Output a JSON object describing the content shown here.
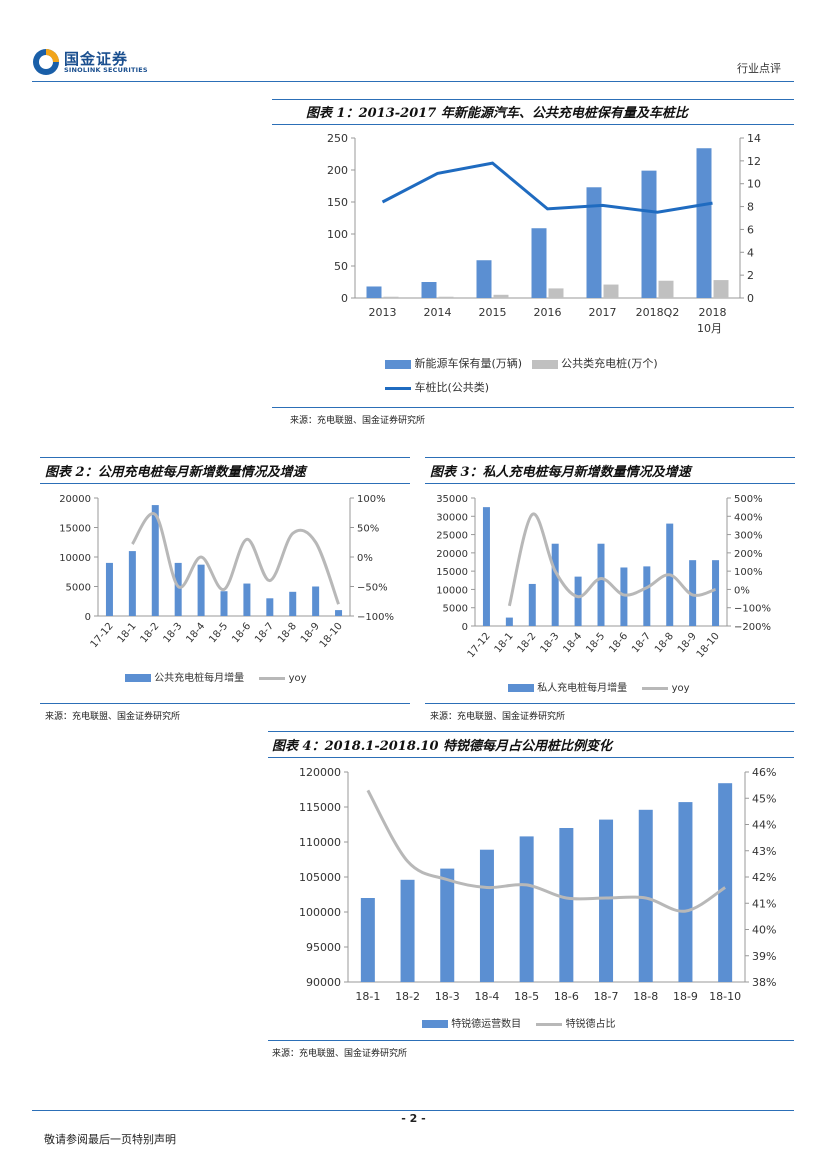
{
  "header": {
    "logo_cn": "国金证券",
    "logo_en": "SINOLINK SECURITIES",
    "section": "行业点评"
  },
  "figures": [
    {
      "caption": "图表 1：2013-2017 年新能源汽车、公共充电桩保有量及车桩比",
      "source": "来源：充电联盟、国金证券研究所",
      "legend": [
        "新能源车保有量(万辆)",
        "公共类充电桩(万个)",
        "车桩比(公共类)"
      ]
    },
    {
      "caption": "图表 2：公用充电桩每月新增数量情况及增速",
      "source": "来源：充电联盟、国金证券研究所",
      "legend": [
        "公共充电桩每月增量",
        "yoy"
      ]
    },
    {
      "caption": "图表 3：私人充电桩每月新增数量情况及增速",
      "source": "来源：充电联盟、国金证券研究所",
      "legend": [
        "私人充电桩每月增量",
        "yoy"
      ]
    },
    {
      "caption": "图表 4：2018.1-2018.10 特锐德每月占公用桩比例变化",
      "source": "来源：充电联盟、国金证券研究所",
      "legend": [
        "特锐德运营数目",
        "特锐德占比"
      ]
    }
  ],
  "chart_data": [
    {
      "type": "bar",
      "categories": [
        "2013",
        "2014",
        "2015",
        "2016",
        "2017",
        "2018Q2",
        "2018 10月"
      ],
      "series": [
        {
          "name": "新能源车保有量(万辆)",
          "type": "bar",
          "axis": "left",
          "values": [
            18,
            25,
            59,
            109,
            173,
            199,
            234
          ]
        },
        {
          "name": "公共类充电桩(万个)",
          "type": "bar",
          "axis": "left",
          "values": [
            2,
            2,
            5,
            15,
            21,
            27,
            28
          ]
        },
        {
          "name": "车桩比(公共类)",
          "type": "line",
          "axis": "right",
          "values": [
            8.4,
            10.9,
            11.8,
            7.8,
            8.1,
            7.5,
            8.3
          ]
        }
      ],
      "ylim": [
        0,
        250
      ],
      "yticks": [
        0,
        50,
        100,
        150,
        200,
        250
      ],
      "y2lim": [
        0,
        14
      ],
      "y2ticks": [
        0,
        2,
        4,
        6,
        8,
        10,
        12,
        14
      ],
      "colors": [
        "#5b8fd2",
        "#c0c0c0",
        "#1f6bc0"
      ]
    },
    {
      "type": "bar",
      "categories": [
        "17-12",
        "18-1",
        "18-2",
        "18-3",
        "18-4",
        "18-5",
        "18-6",
        "18-7",
        "18-8",
        "18-9",
        "18-10"
      ],
      "series": [
        {
          "name": "公共充电桩每月增量",
          "type": "bar",
          "axis": "left",
          "values": [
            9000,
            11000,
            18800,
            9000,
            8700,
            4200,
            5500,
            3000,
            4100,
            5000,
            1000
          ]
        },
        {
          "name": "yoy",
          "type": "line",
          "axis": "right",
          "values": [
            null,
            22,
            72,
            -50,
            0,
            -55,
            30,
            -40,
            40,
            25,
            -80
          ]
        }
      ],
      "ylim": [
        0,
        20000
      ],
      "yticks": [
        0,
        5000,
        10000,
        15000,
        20000
      ],
      "y2lim": [
        -100,
        100
      ],
      "y2ticks": [
        "−100%",
        "−50%",
        "0%",
        "50%",
        "100%"
      ],
      "colors": [
        "#5b8fd2",
        "#b8b8b8"
      ]
    },
    {
      "type": "bar",
      "categories": [
        "17-12",
        "18-1",
        "18-2",
        "18-3",
        "18-4",
        "18-5",
        "18-6",
        "18-7",
        "18-8",
        "18-9",
        "18-10"
      ],
      "series": [
        {
          "name": "私人充电桩每月增量",
          "type": "bar",
          "axis": "left",
          "values": [
            32500,
            2300,
            11500,
            22500,
            13500,
            22500,
            16000,
            16300,
            28000,
            18000,
            18000
          ]
        },
        {
          "name": "yoy",
          "type": "line",
          "axis": "right",
          "values": [
            null,
            -90,
            410,
            100,
            -40,
            60,
            -30,
            10,
            80,
            -30,
            0
          ]
        }
      ],
      "ylim": [
        0,
        35000
      ],
      "yticks": [
        0,
        5000,
        10000,
        15000,
        20000,
        25000,
        30000,
        35000
      ],
      "y2lim": [
        -200,
        500
      ],
      "y2ticks": [
        "−200%",
        "−100%",
        "0%",
        "100%",
        "200%",
        "300%",
        "400%",
        "500%"
      ],
      "colors": [
        "#5b8fd2",
        "#b8b8b8"
      ]
    },
    {
      "type": "bar",
      "categories": [
        "18-1",
        "18-2",
        "18-3",
        "18-4",
        "18-5",
        "18-6",
        "18-7",
        "18-8",
        "18-9",
        "18-10"
      ],
      "series": [
        {
          "name": "特锐德运营数目",
          "type": "bar",
          "axis": "left",
          "values": [
            102000,
            104600,
            106200,
            108900,
            110800,
            112000,
            113200,
            114600,
            115700,
            118400
          ]
        },
        {
          "name": "特锐德占比",
          "type": "line",
          "axis": "right",
          "values": [
            45.3,
            42.6,
            41.9,
            41.6,
            41.7,
            41.2,
            41.2,
            41.2,
            40.7,
            41.6
          ]
        }
      ],
      "ylim": [
        90000,
        120000
      ],
      "yticks": [
        90000,
        95000,
        100000,
        105000,
        110000,
        115000,
        120000
      ],
      "y2lim": [
        38,
        46
      ],
      "y2ticks": [
        "38%",
        "39%",
        "40%",
        "41%",
        "42%",
        "43%",
        "44%",
        "45%",
        "46%"
      ],
      "colors": [
        "#5b8fd2",
        "#b8b8b8"
      ]
    }
  ],
  "footer": {
    "page": "- 2 -",
    "disclaimer": "敬请参阅最后一页特别声明"
  }
}
